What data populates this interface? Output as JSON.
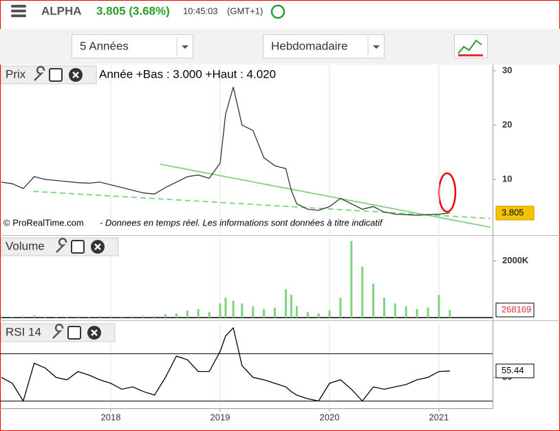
{
  "header": {
    "symbol": "ALPHA",
    "quote": "3.805 (3.68%)",
    "time": "10:45:03",
    "timezone": "(GMT+1)"
  },
  "toolbar": {
    "period": "5 Années",
    "interval": "Hebdomadaire"
  },
  "chart_data": [
    {
      "type": "line",
      "title": "Prix",
      "subtitle": "Année +Bas : 3.000 +Haut : 4.020",
      "annotations": [
        "© ProRealTime.com",
        "- Donnees en temps réel. Les informations sont données à titre indicatif"
      ],
      "x": [
        2017.0,
        2017.1,
        2017.2,
        2017.3,
        2017.4,
        2017.5,
        2017.6,
        2017.7,
        2017.8,
        2017.9,
        2018.0,
        2018.1,
        2018.2,
        2018.3,
        2018.4,
        2018.5,
        2018.6,
        2018.7,
        2018.8,
        2018.9,
        2019.0,
        2019.05,
        2019.12,
        2019.2,
        2019.3,
        2019.4,
        2019.5,
        2019.6,
        2019.65,
        2019.7,
        2019.8,
        2019.9,
        2020.0,
        2020.1,
        2020.2,
        2020.3,
        2020.4,
        2020.5,
        2020.6,
        2020.7,
        2020.8,
        2020.9,
        2021.0,
        2021.1
      ],
      "values": [
        9.5,
        9.2,
        8.3,
        10.5,
        10,
        9.8,
        9.6,
        9.4,
        9.3,
        9.5,
        9.0,
        8.5,
        8.0,
        7.5,
        7.3,
        8.5,
        9.5,
        10.5,
        10.8,
        10.2,
        13,
        22,
        27,
        20,
        19,
        14,
        12.5,
        12,
        8,
        5.5,
        4.5,
        4.3,
        5,
        6.5,
        5.5,
        4.5,
        5,
        4,
        3.6,
        3.5,
        3.4,
        3.5,
        3.6,
        3.805
      ],
      "color": "#333333",
      "xlim": [
        2017,
        2021.5
      ],
      "ylim": [
        0,
        31
      ],
      "yticks": [
        10,
        20,
        30
      ],
      "trendlines": [
        {
          "x": [
            2018.45,
            2021.47
          ],
          "y": [
            12.8,
            1.2
          ],
          "color": "#7ed37e",
          "dashed": false
        },
        {
          "x": [
            2017.29,
            2021.47
          ],
          "y": [
            7.8,
            2.8
          ],
          "color": "#7ed37e",
          "dashed": true
        }
      ]
    },
    {
      "type": "bar",
      "title": "Volume",
      "x": [
        2017.0,
        2017.1,
        2017.2,
        2017.3,
        2017.4,
        2017.5,
        2017.6,
        2017.7,
        2017.8,
        2017.9,
        2018.0,
        2018.1,
        2018.2,
        2018.3,
        2018.4,
        2018.5,
        2018.6,
        2018.7,
        2018.8,
        2018.9,
        2019.0,
        2019.05,
        2019.12,
        2019.2,
        2019.3,
        2019.4,
        2019.5,
        2019.6,
        2019.65,
        2019.7,
        2019.8,
        2019.9,
        2020.0,
        2020.1,
        2020.2,
        2020.3,
        2020.4,
        2020.5,
        2020.6,
        2020.7,
        2020.8,
        2020.9,
        2021.0,
        2021.1
      ],
      "values": [
        40000,
        30000,
        50000,
        80000,
        40000,
        30000,
        30000,
        40000,
        30000,
        50000,
        40000,
        30000,
        40000,
        60000,
        50000,
        120000,
        150000,
        250000,
        300000,
        200000,
        500000,
        700000,
        600000,
        500000,
        400000,
        300000,
        350000,
        1000000,
        800000,
        400000,
        200000,
        150000,
        250000,
        700000,
        2700000,
        1800000,
        1200000,
        700000,
        500000,
        400000,
        300000,
        350000,
        800000,
        268169
      ],
      "color": "#7ed37e",
      "xlim": [
        2017,
        2021.5
      ],
      "ylim": [
        0,
        2840000
      ],
      "yticks": [
        {
          "value": 2000000,
          "label": "2000K"
        }
      ]
    },
    {
      "type": "line",
      "title": "RSI 14",
      "x": [
        2017.0,
        2017.1,
        2017.2,
        2017.3,
        2017.4,
        2017.5,
        2017.6,
        2017.7,
        2017.8,
        2017.9,
        2018.0,
        2018.1,
        2018.2,
        2018.3,
        2018.4,
        2018.5,
        2018.6,
        2018.7,
        2018.8,
        2018.9,
        2019.0,
        2019.05,
        2019.12,
        2019.2,
        2019.3,
        2019.4,
        2019.5,
        2019.6,
        2019.65,
        2019.7,
        2019.8,
        2019.9,
        2020.0,
        2020.1,
        2020.2,
        2020.3,
        2020.4,
        2020.5,
        2020.6,
        2020.7,
        2020.8,
        2020.9,
        2021.0,
        2021.1
      ],
      "values": [
        50,
        45,
        30,
        62,
        58,
        50,
        48,
        55,
        52,
        48,
        45,
        40,
        42,
        38,
        35,
        50,
        68,
        65,
        55,
        55,
        72,
        85,
        92,
        60,
        50,
        48,
        45,
        42,
        38,
        35,
        32,
        30,
        45,
        48,
        40,
        30,
        42,
        40,
        42,
        44,
        48,
        50,
        55,
        55.44
      ],
      "color": "#000000",
      "xlim": [
        2017,
        2021.5
      ],
      "ylim": [
        25,
        96
      ],
      "yticks": [
        50
      ],
      "levels": [
        30,
        70
      ],
      "xticks": [
        2018,
        2019,
        2020,
        2021
      ]
    }
  ]
}
